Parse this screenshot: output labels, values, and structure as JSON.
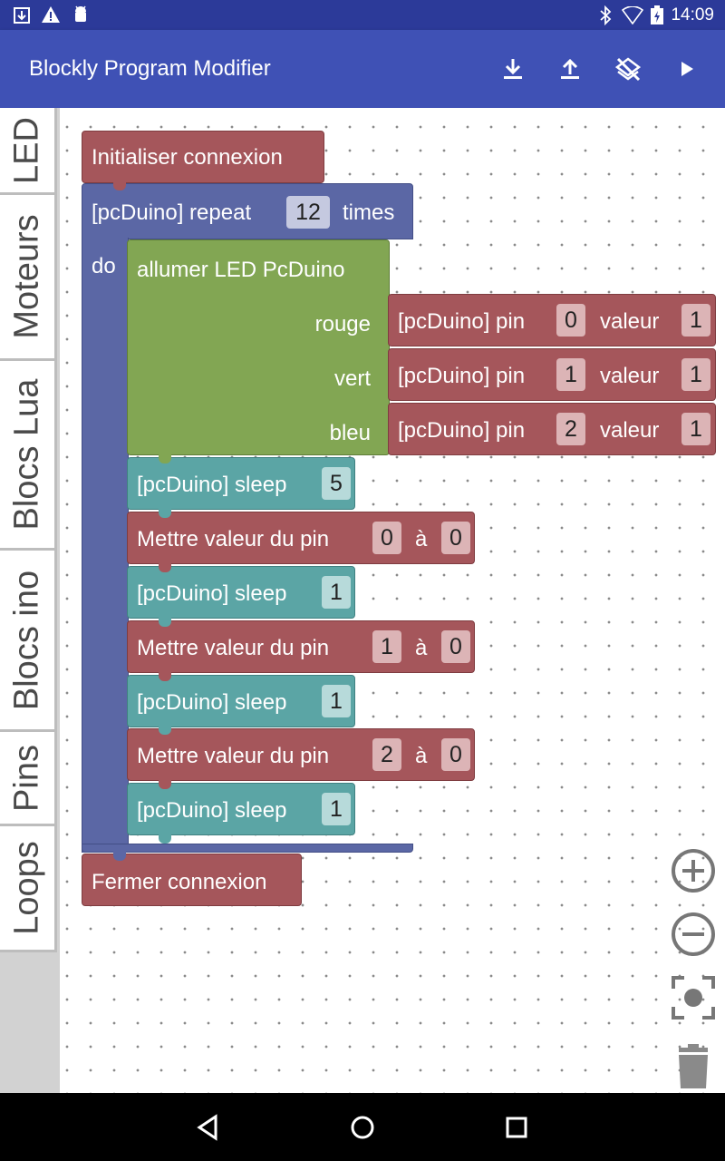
{
  "status_bar": {
    "time": "14:09"
  },
  "app_bar": {
    "title": "Blockly Program Modifier",
    "icons": [
      "download-icon",
      "upload-icon",
      "layers-clear-icon",
      "play-icon"
    ]
  },
  "tabs": [
    "LED",
    "Moteurs",
    "Blocs Lua",
    "Blocs ino",
    "Pins",
    "Loops"
  ],
  "blocks": {
    "init": "Initialiser connexion",
    "repeat": {
      "prefix": "[pcDuino] repeat",
      "count": "12",
      "suffix": "times",
      "do": "do"
    },
    "led": {
      "label": "allumer LED PcDuino",
      "inputs": [
        {
          "name": "rouge",
          "pin_label": "[pcDuino] pin",
          "pin": "0",
          "value_label": "valeur",
          "value": "1"
        },
        {
          "name": "vert",
          "pin_label": "[pcDuino] pin",
          "pin": "1",
          "value_label": "valeur",
          "value": "1"
        },
        {
          "name": "bleu",
          "pin_label": "[pcDuino] pin",
          "pin": "2",
          "value_label": "valeur",
          "value": "1"
        }
      ]
    },
    "sleep_label": "[pcDuino] sleep",
    "set_label": "Mettre valeur du pin",
    "set_to": "à",
    "sequence": [
      {
        "kind": "sleep",
        "value": "5"
      },
      {
        "kind": "set",
        "pin": "0",
        "value": "0"
      },
      {
        "kind": "sleep",
        "value": "1"
      },
      {
        "kind": "set",
        "pin": "1",
        "value": "0"
      },
      {
        "kind": "sleep",
        "value": "1"
      },
      {
        "kind": "set",
        "pin": "2",
        "value": "0"
      },
      {
        "kind": "sleep",
        "value": "1"
      }
    ],
    "close": "Fermer connexion"
  },
  "controls": [
    "zoom-in-icon",
    "zoom-out-icon",
    "recenter-icon",
    "trash-icon"
  ],
  "colors": {
    "primary": "#3f51b5",
    "status": "#2c3a99",
    "red_block": "#a5565b",
    "teal_block": "#5ba5a5",
    "green_block": "#82a653",
    "blue_block": "#5b67a5"
  }
}
